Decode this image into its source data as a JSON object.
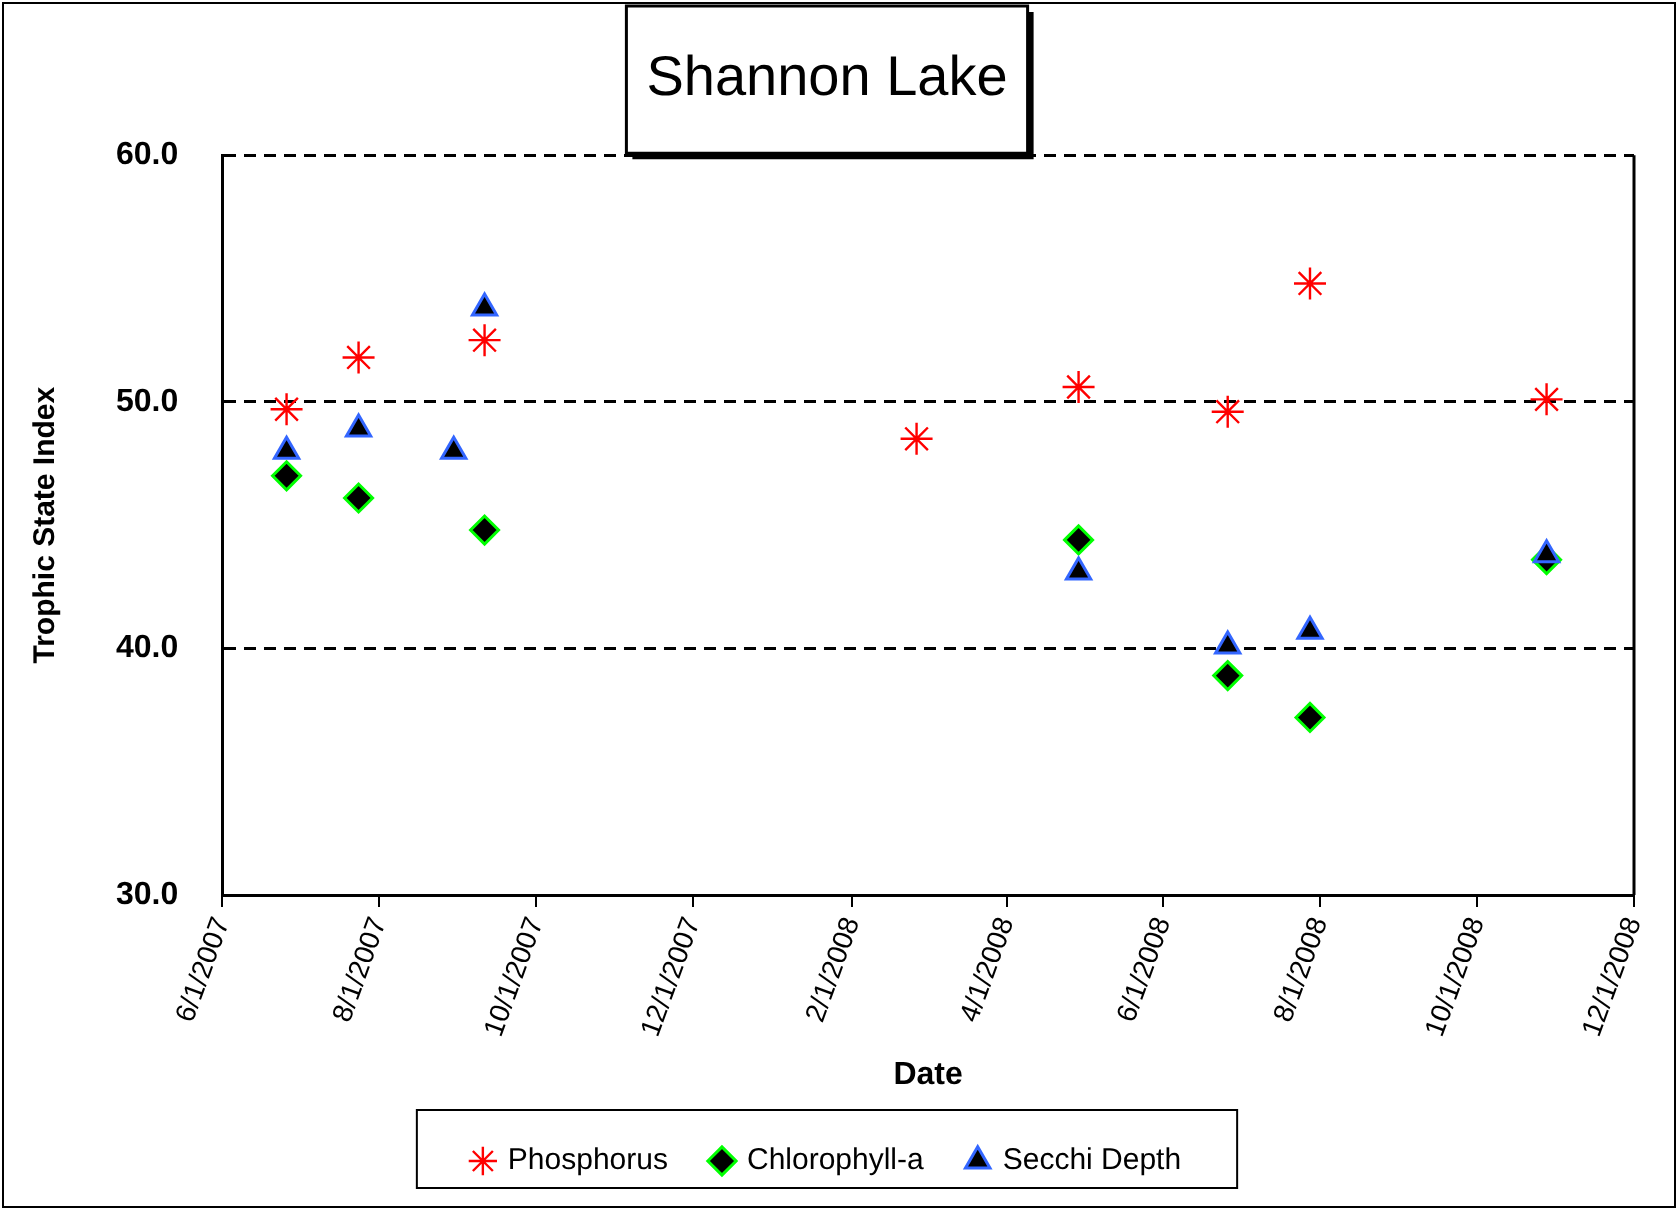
{
  "chart_data": {
    "type": "scatter",
    "title": "Shannon Lake",
    "xlabel": "Date",
    "ylabel": "Trophic State Index",
    "x": [
      "2007-06-26",
      "2007-07-24",
      "2007-08-30",
      "2007-09-11",
      "2008-02-26",
      "2008-04-29",
      "2008-06-26",
      "2008-07-28",
      "2008-10-28"
    ],
    "series": [
      {
        "name": "Phosphorus",
        "color": "#ff0000",
        "marker": "cross",
        "values": [
          49.7,
          51.8,
          null,
          52.5,
          48.5,
          50.6,
          49.6,
          54.8,
          50.1
        ]
      },
      {
        "name": "Chlorophyll-a",
        "color": "#00ff00",
        "marker": "diamond",
        "values": [
          47.0,
          46.1,
          null,
          44.8,
          null,
          44.4,
          38.9,
          37.2,
          43.6
        ]
      },
      {
        "name": "Secchi Depth",
        "color": "#3366ff",
        "marker": "triangle",
        "values": [
          48.0,
          48.9,
          48.0,
          53.8,
          null,
          43.1,
          40.1,
          40.7,
          43.8
        ]
      }
    ],
    "xlim": [
      "2007-06-01",
      "2008-12-01"
    ],
    "xticks": [
      {
        "value": "2007-06-01",
        "label": "6/1/2007"
      },
      {
        "value": "2007-08-01",
        "label": "8/1/2007"
      },
      {
        "value": "2007-10-01",
        "label": "10/1/2007"
      },
      {
        "value": "2007-12-01",
        "label": "12/1/2007"
      },
      {
        "value": "2008-02-01",
        "label": "2/1/2008"
      },
      {
        "value": "2008-04-01",
        "label": "4/1/2008"
      },
      {
        "value": "2008-06-01",
        "label": "6/1/2008"
      },
      {
        "value": "2008-08-01",
        "label": "8/1/2008"
      },
      {
        "value": "2008-10-01",
        "label": "10/1/2008"
      },
      {
        "value": "2008-12-01",
        "label": "12/1/2008"
      }
    ],
    "ylim": [
      30,
      60
    ],
    "yticks": [
      {
        "value": 30,
        "label": "30.0"
      },
      {
        "value": 40,
        "label": "40.0"
      },
      {
        "value": 50,
        "label": "50.0"
      },
      {
        "value": 60,
        "label": "60.0"
      }
    ],
    "grid": "y",
    "line_style": "dashed",
    "legend": "bottom"
  }
}
